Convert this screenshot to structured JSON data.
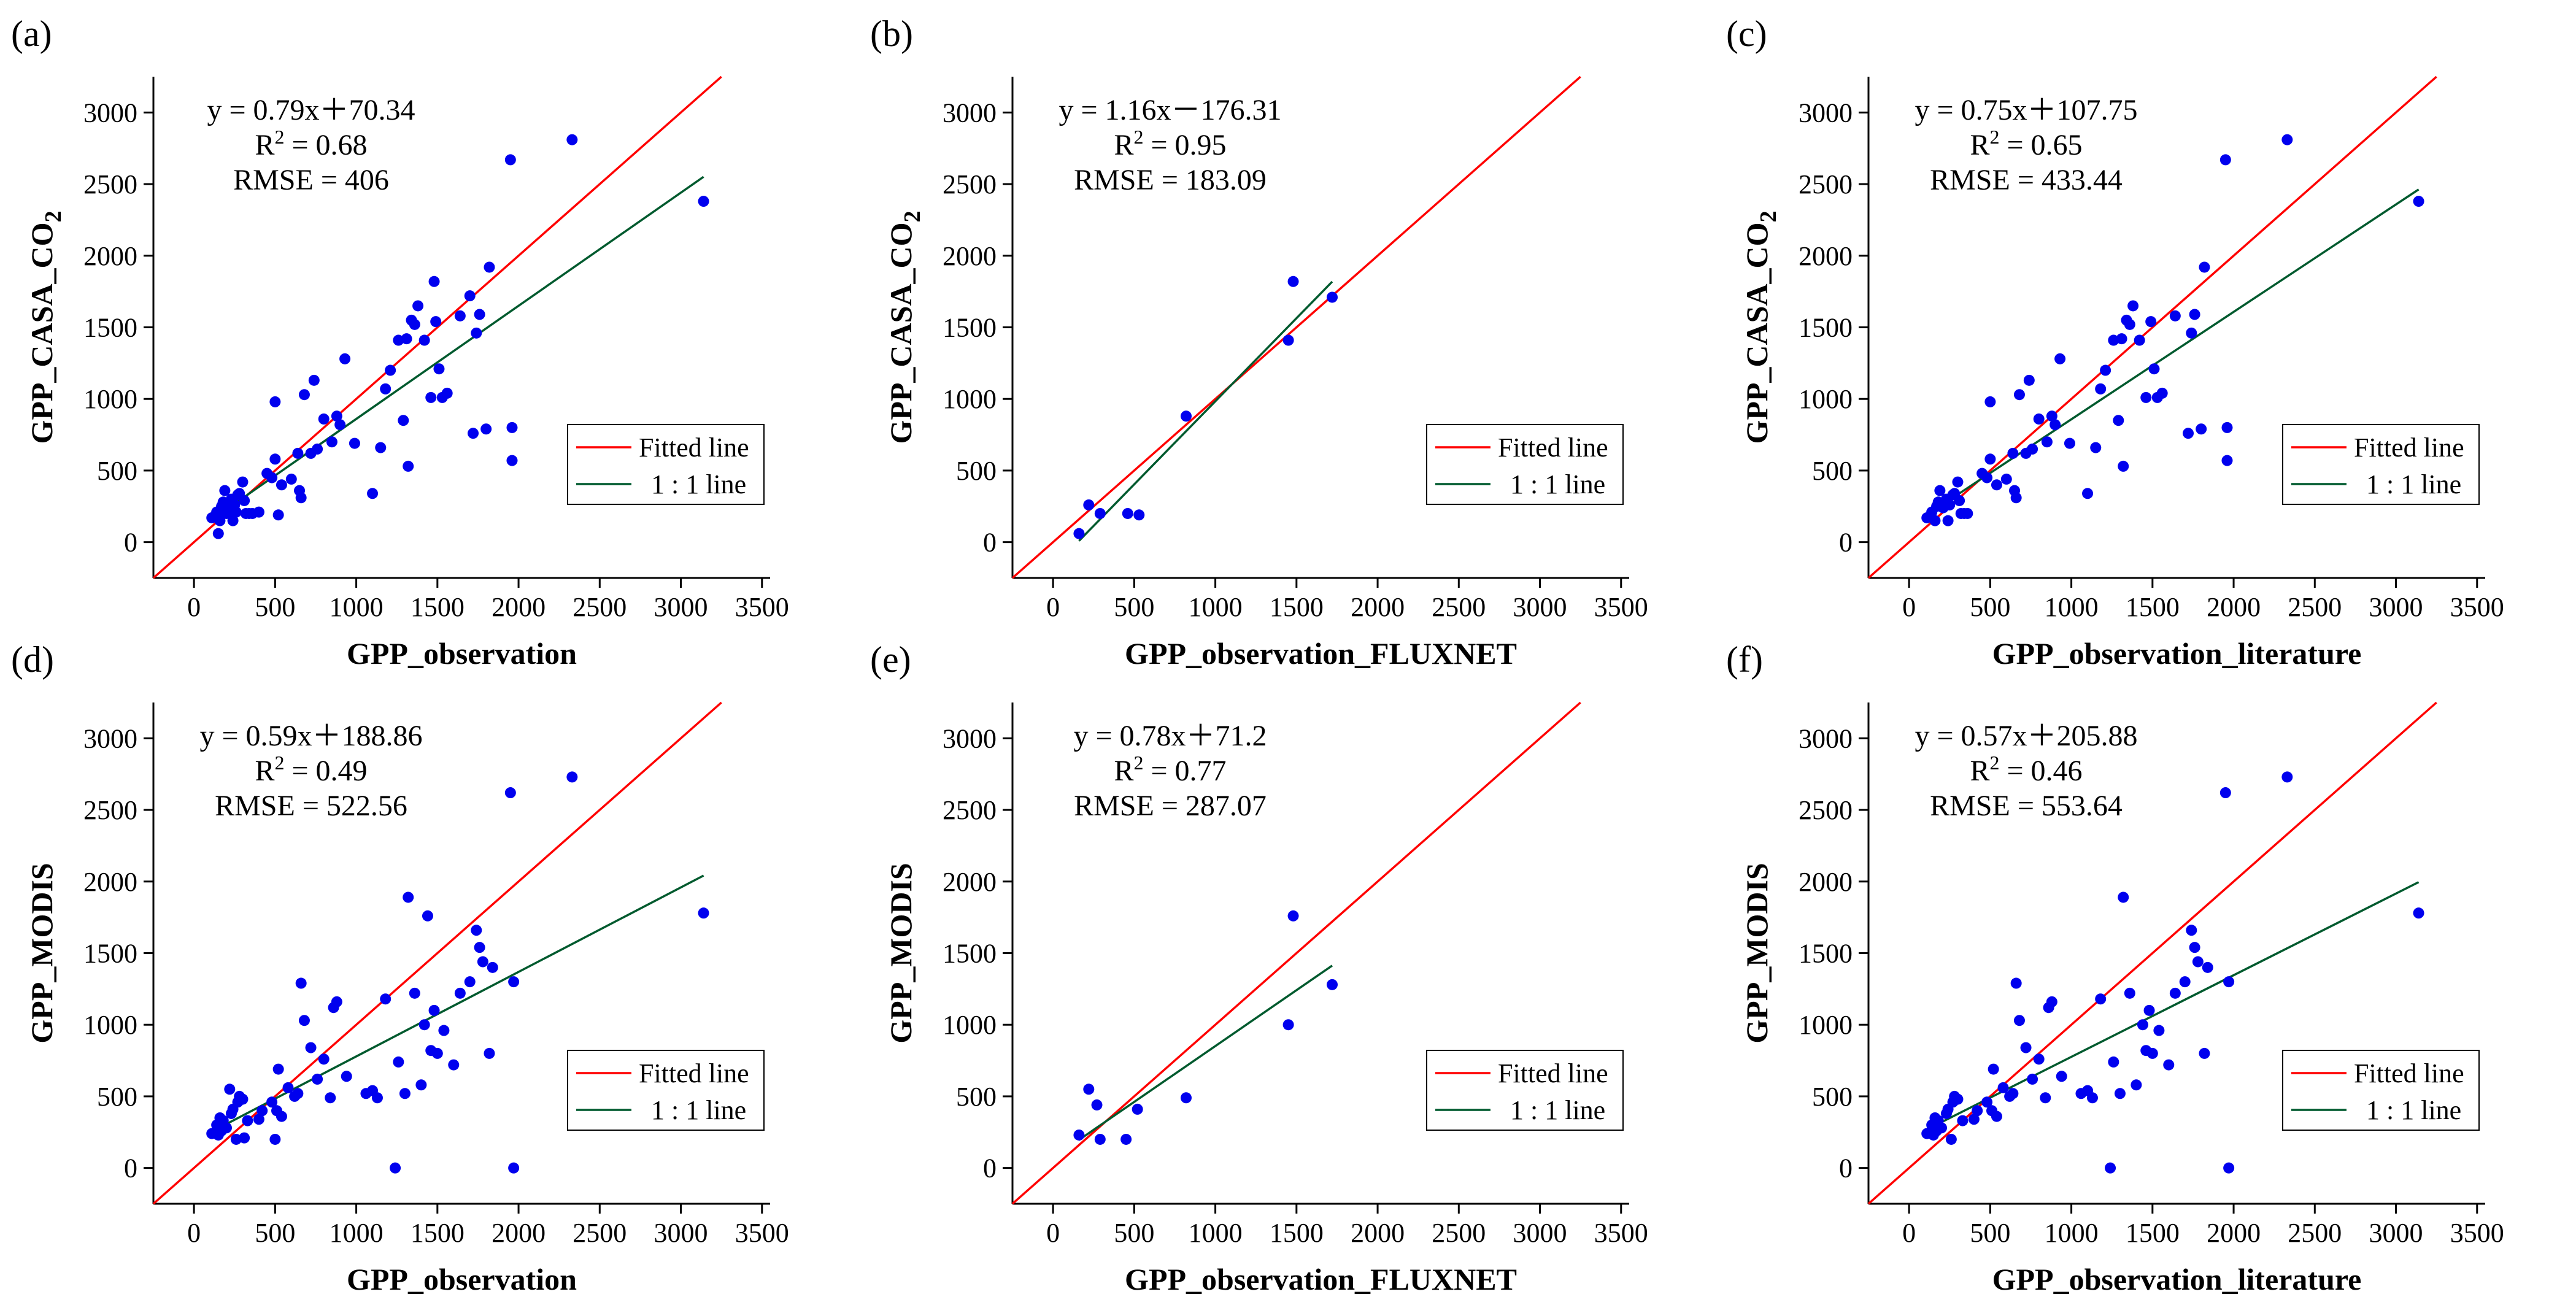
{
  "figure": {
    "legend_fitted": "Fitted line",
    "legend_one_to_one": "1 : 1 line",
    "colors": {
      "points": "#0000ee",
      "fitted": "#ff0000",
      "one_to_one": "#005a2e",
      "axes": "#000000"
    }
  },
  "chart_data": [
    {
      "type": "scatter",
      "panel": "(a)",
      "xlabel": "GPP_observation",
      "ylabel_main": "GPP_CASA_CO",
      "ylabel_sub": "2",
      "xlim": [
        -250,
        3550
      ],
      "ylim": [
        -250,
        3250
      ],
      "xticks": [
        "0",
        "500",
        "1000",
        "1500",
        "2000",
        "2500",
        "3000",
        "3500"
      ],
      "yticks": [
        "0",
        "500",
        "1000",
        "1500",
        "2000",
        "2500",
        "3000"
      ],
      "eq": "y = 0.79x＋70.34",
      "r2_value": " = 0.68",
      "rmse": "RMSE = 406",
      "fit_slope": 0.79,
      "fit_intercept": 70.34,
      "fit_x": [
        110,
        3140
      ],
      "points": [
        [
          110,
          170
        ],
        [
          130,
          180
        ],
        [
          140,
          210
        ],
        [
          150,
          60
        ],
        [
          160,
          150
        ],
        [
          170,
          250
        ],
        [
          180,
          280
        ],
        [
          190,
          360
        ],
        [
          200,
          200
        ],
        [
          210,
          240
        ],
        [
          230,
          300
        ],
        [
          240,
          150
        ],
        [
          250,
          260
        ],
        [
          260,
          210
        ],
        [
          270,
          330
        ],
        [
          280,
          340
        ],
        [
          300,
          420
        ],
        [
          310,
          290
        ],
        [
          320,
          200
        ],
        [
          340,
          200
        ],
        [
          360,
          200
        ],
        [
          400,
          210
        ],
        [
          450,
          480
        ],
        [
          480,
          450
        ],
        [
          500,
          580
        ],
        [
          500,
          980
        ],
        [
          520,
          190
        ],
        [
          540,
          400
        ],
        [
          600,
          440
        ],
        [
          640,
          620
        ],
        [
          650,
          360
        ],
        [
          660,
          310
        ],
        [
          680,
          1030
        ],
        [
          720,
          620
        ],
        [
          740,
          1130
        ],
        [
          760,
          650
        ],
        [
          800,
          860
        ],
        [
          850,
          700
        ],
        [
          880,
          880
        ],
        [
          900,
          820
        ],
        [
          930,
          1280
        ],
        [
          990,
          690
        ],
        [
          1100,
          340
        ],
        [
          1150,
          660
        ],
        [
          1180,
          1070
        ],
        [
          1210,
          1200
        ],
        [
          1260,
          1410
        ],
        [
          1290,
          850
        ],
        [
          1310,
          1420
        ],
        [
          1320,
          530
        ],
        [
          1340,
          1550
        ],
        [
          1360,
          1520
        ],
        [
          1380,
          1650
        ],
        [
          1420,
          1410
        ],
        [
          1460,
          1010
        ],
        [
          1480,
          1820
        ],
        [
          1490,
          1540
        ],
        [
          1510,
          1210
        ],
        [
          1530,
          1010
        ],
        [
          1560,
          1040
        ],
        [
          1640,
          1580
        ],
        [
          1700,
          1720
        ],
        [
          1720,
          760
        ],
        [
          1740,
          1460
        ],
        [
          1760,
          1590
        ],
        [
          1800,
          790
        ],
        [
          1820,
          1920
        ],
        [
          1950,
          2670
        ],
        [
          1960,
          570
        ],
        [
          1960,
          800
        ],
        [
          2330,
          2810
        ],
        [
          3140,
          2380
        ]
      ]
    },
    {
      "type": "scatter",
      "panel": "(b)",
      "xlabel": "GPP_observation_FLUXNET",
      "ylabel_main": "GPP_CASA_CO",
      "ylabel_sub": "2",
      "xlim": [
        -250,
        3550
      ],
      "ylim": [
        -250,
        3250
      ],
      "xticks": [
        "0",
        "500",
        "1000",
        "1500",
        "2000",
        "2500",
        "3000",
        "3500"
      ],
      "yticks": [
        "0",
        "500",
        "1000",
        "1500",
        "2000",
        "2500",
        "3000"
      ],
      "eq": "y = 1.16x－176.31",
      "r2_value": " = 0.95",
      "rmse": "RMSE = 183.09",
      "fit_slope": 1.16,
      "fit_intercept": -176.31,
      "fit_x": [
        160,
        1720
      ],
      "points": [
        [
          160,
          60
        ],
        [
          220,
          260
        ],
        [
          290,
          200
        ],
        [
          460,
          200
        ],
        [
          530,
          190
        ],
        [
          820,
          880
        ],
        [
          1450,
          1410
        ],
        [
          1480,
          1820
        ],
        [
          1720,
          1710
        ]
      ]
    },
    {
      "type": "scatter",
      "panel": "(c)",
      "xlabel": "GPP_observation_literature",
      "ylabel_main": "GPP_CASA_CO",
      "ylabel_sub": "2",
      "xlim": [
        -250,
        3550
      ],
      "ylim": [
        -250,
        3250
      ],
      "xticks": [
        "0",
        "500",
        "1000",
        "1500",
        "2000",
        "2500",
        "3000",
        "3500"
      ],
      "yticks": [
        "0",
        "500",
        "1000",
        "1500",
        "2000",
        "2500",
        "3000"
      ],
      "eq": "y = 0.75x＋107.75",
      "r2_value": " = 0.65",
      "rmse": "RMSE = 433.44",
      "fit_slope": 0.75,
      "fit_intercept": 107.75,
      "fit_x": [
        110,
        3140
      ],
      "points": [
        [
          110,
          170
        ],
        [
          130,
          180
        ],
        [
          140,
          210
        ],
        [
          160,
          150
        ],
        [
          170,
          250
        ],
        [
          180,
          280
        ],
        [
          190,
          360
        ],
        [
          210,
          240
        ],
        [
          230,
          300
        ],
        [
          240,
          150
        ],
        [
          250,
          260
        ],
        [
          270,
          330
        ],
        [
          280,
          340
        ],
        [
          300,
          420
        ],
        [
          310,
          290
        ],
        [
          320,
          200
        ],
        [
          340,
          200
        ],
        [
          360,
          200
        ],
        [
          450,
          480
        ],
        [
          480,
          450
        ],
        [
          500,
          580
        ],
        [
          500,
          980
        ],
        [
          540,
          400
        ],
        [
          600,
          440
        ],
        [
          640,
          620
        ],
        [
          650,
          360
        ],
        [
          660,
          310
        ],
        [
          680,
          1030
        ],
        [
          720,
          620
        ],
        [
          740,
          1130
        ],
        [
          760,
          650
        ],
        [
          800,
          860
        ],
        [
          850,
          700
        ],
        [
          880,
          880
        ],
        [
          900,
          820
        ],
        [
          930,
          1280
        ],
        [
          990,
          690
        ],
        [
          1100,
          340
        ],
        [
          1150,
          660
        ],
        [
          1180,
          1070
        ],
        [
          1210,
          1200
        ],
        [
          1260,
          1410
        ],
        [
          1290,
          850
        ],
        [
          1310,
          1420
        ],
        [
          1320,
          530
        ],
        [
          1340,
          1550
        ],
        [
          1360,
          1520
        ],
        [
          1380,
          1650
        ],
        [
          1420,
          1410
        ],
        [
          1460,
          1010
        ],
        [
          1490,
          1540
        ],
        [
          1510,
          1210
        ],
        [
          1530,
          1010
        ],
        [
          1560,
          1040
        ],
        [
          1640,
          1580
        ],
        [
          1720,
          760
        ],
        [
          1740,
          1460
        ],
        [
          1760,
          1590
        ],
        [
          1800,
          790
        ],
        [
          1820,
          1920
        ],
        [
          1950,
          2670
        ],
        [
          1960,
          570
        ],
        [
          1960,
          800
        ],
        [
          2330,
          2810
        ],
        [
          3140,
          2380
        ]
      ]
    },
    {
      "type": "scatter",
      "panel": "(d)",
      "xlabel": "GPP_observation",
      "ylabel_main": "GPP_MODIS",
      "ylabel_sub": "",
      "xlim": [
        -250,
        3550
      ],
      "ylim": [
        -250,
        3250
      ],
      "xticks": [
        "0",
        "500",
        "1000",
        "1500",
        "2000",
        "2500",
        "3000",
        "3500"
      ],
      "yticks": [
        "0",
        "500",
        "1000",
        "1500",
        "2000",
        "2500",
        "3000"
      ],
      "eq": "y = 0.59x＋188.86",
      "r2_value": " = 0.49",
      "rmse": "RMSE = 522.56",
      "fit_slope": 0.59,
      "fit_intercept": 188.86,
      "fit_x": [
        110,
        3140
      ],
      "points": [
        [
          110,
          240
        ],
        [
          130,
          250
        ],
        [
          140,
          300
        ],
        [
          150,
          230
        ],
        [
          160,
          350
        ],
        [
          170,
          260
        ],
        [
          180,
          330
        ],
        [
          200,
          280
        ],
        [
          220,
          550
        ],
        [
          230,
          380
        ],
        [
          240,
          410
        ],
        [
          260,
          200
        ],
        [
          270,
          460
        ],
        [
          280,
          500
        ],
        [
          300,
          480
        ],
        [
          310,
          210
        ],
        [
          330,
          330
        ],
        [
          400,
          340
        ],
        [
          420,
          400
        ],
        [
          480,
          460
        ],
        [
          500,
          200
        ],
        [
          510,
          400
        ],
        [
          520,
          690
        ],
        [
          540,
          360
        ],
        [
          580,
          560
        ],
        [
          620,
          500
        ],
        [
          640,
          520
        ],
        [
          660,
          1290
        ],
        [
          680,
          1030
        ],
        [
          720,
          840
        ],
        [
          760,
          620
        ],
        [
          800,
          760
        ],
        [
          840,
          490
        ],
        [
          860,
          1120
        ],
        [
          880,
          1160
        ],
        [
          940,
          640
        ],
        [
          1060,
          520
        ],
        [
          1100,
          540
        ],
        [
          1130,
          490
        ],
        [
          1180,
          1180
        ],
        [
          1240,
          0
        ],
        [
          1260,
          740
        ],
        [
          1300,
          520
        ],
        [
          1320,
          1890
        ],
        [
          1360,
          1220
        ],
        [
          1400,
          580
        ],
        [
          1420,
          1000
        ],
        [
          1440,
          1760
        ],
        [
          1460,
          820
        ],
        [
          1480,
          1100
        ],
        [
          1500,
          800
        ],
        [
          1540,
          960
        ],
        [
          1600,
          720
        ],
        [
          1640,
          1220
        ],
        [
          1700,
          1300
        ],
        [
          1740,
          1660
        ],
        [
          1760,
          1540
        ],
        [
          1780,
          1440
        ],
        [
          1820,
          800
        ],
        [
          1840,
          1400
        ],
        [
          1950,
          2620
        ],
        [
          1970,
          0
        ],
        [
          1970,
          1300
        ],
        [
          2330,
          2730
        ],
        [
          3140,
          1780
        ]
      ]
    },
    {
      "type": "scatter",
      "panel": "(e)",
      "xlabel": "GPP_observation_FLUXNET",
      "ylabel_main": "GPP_MODIS",
      "ylabel_sub": "",
      "xlim": [
        -250,
        3550
      ],
      "ylim": [
        -250,
        3250
      ],
      "xticks": [
        "0",
        "500",
        "1000",
        "1500",
        "2000",
        "2500",
        "3000",
        "3500"
      ],
      "yticks": [
        "0",
        "500",
        "1000",
        "1500",
        "2000",
        "2500",
        "3000"
      ],
      "eq": "y = 0.78x＋71.2",
      "r2_value": " = 0.77",
      "rmse": "RMSE = 287.07",
      "fit_slope": 0.78,
      "fit_intercept": 71.2,
      "fit_x": [
        160,
        1720
      ],
      "points": [
        [
          160,
          230
        ],
        [
          220,
          550
        ],
        [
          270,
          440
        ],
        [
          290,
          200
        ],
        [
          450,
          200
        ],
        [
          520,
          410
        ],
        [
          820,
          490
        ],
        [
          1450,
          1000
        ],
        [
          1480,
          1760
        ],
        [
          1720,
          1280
        ]
      ]
    },
    {
      "type": "scatter",
      "panel": "(f)",
      "xlabel": "GPP_observation_literature",
      "ylabel_main": "GPP_MODIS",
      "ylabel_sub": "",
      "xlim": [
        -250,
        3550
      ],
      "ylim": [
        -250,
        3250
      ],
      "xticks": [
        "0",
        "500",
        "1000",
        "1500",
        "2000",
        "2500",
        "3000",
        "3500"
      ],
      "yticks": [
        "0",
        "500",
        "1000",
        "1500",
        "2000",
        "2500",
        "3000"
      ],
      "eq": "y = 0.57x＋205.88",
      "r2_value": " = 0.46",
      "rmse": "RMSE = 553.64",
      "fit_slope": 0.57,
      "fit_intercept": 205.88,
      "fit_x": [
        110,
        3140
      ],
      "points": [
        [
          110,
          240
        ],
        [
          130,
          250
        ],
        [
          140,
          300
        ],
        [
          150,
          230
        ],
        [
          160,
          350
        ],
        [
          170,
          260
        ],
        [
          180,
          330
        ],
        [
          200,
          280
        ],
        [
          230,
          380
        ],
        [
          240,
          410
        ],
        [
          260,
          200
        ],
        [
          270,
          460
        ],
        [
          280,
          500
        ],
        [
          300,
          480
        ],
        [
          330,
          330
        ],
        [
          400,
          340
        ],
        [
          420,
          400
        ],
        [
          480,
          460
        ],
        [
          510,
          400
        ],
        [
          520,
          690
        ],
        [
          540,
          360
        ],
        [
          580,
          560
        ],
        [
          620,
          500
        ],
        [
          640,
          520
        ],
        [
          660,
          1290
        ],
        [
          680,
          1030
        ],
        [
          720,
          840
        ],
        [
          760,
          620
        ],
        [
          800,
          760
        ],
        [
          840,
          490
        ],
        [
          860,
          1120
        ],
        [
          880,
          1160
        ],
        [
          940,
          640
        ],
        [
          1060,
          520
        ],
        [
          1100,
          540
        ],
        [
          1130,
          490
        ],
        [
          1180,
          1180
        ],
        [
          1240,
          0
        ],
        [
          1260,
          740
        ],
        [
          1300,
          520
        ],
        [
          1320,
          1890
        ],
        [
          1360,
          1220
        ],
        [
          1400,
          580
        ],
        [
          1440,
          1000
        ],
        [
          1460,
          820
        ],
        [
          1480,
          1100
        ],
        [
          1500,
          800
        ],
        [
          1540,
          960
        ],
        [
          1600,
          720
        ],
        [
          1640,
          1220
        ],
        [
          1700,
          1300
        ],
        [
          1740,
          1660
        ],
        [
          1760,
          1540
        ],
        [
          1780,
          1440
        ],
        [
          1820,
          800
        ],
        [
          1840,
          1400
        ],
        [
          1950,
          2620
        ],
        [
          1970,
          0
        ],
        [
          1970,
          1300
        ],
        [
          2330,
          2730
        ],
        [
          3140,
          1780
        ]
      ]
    }
  ]
}
